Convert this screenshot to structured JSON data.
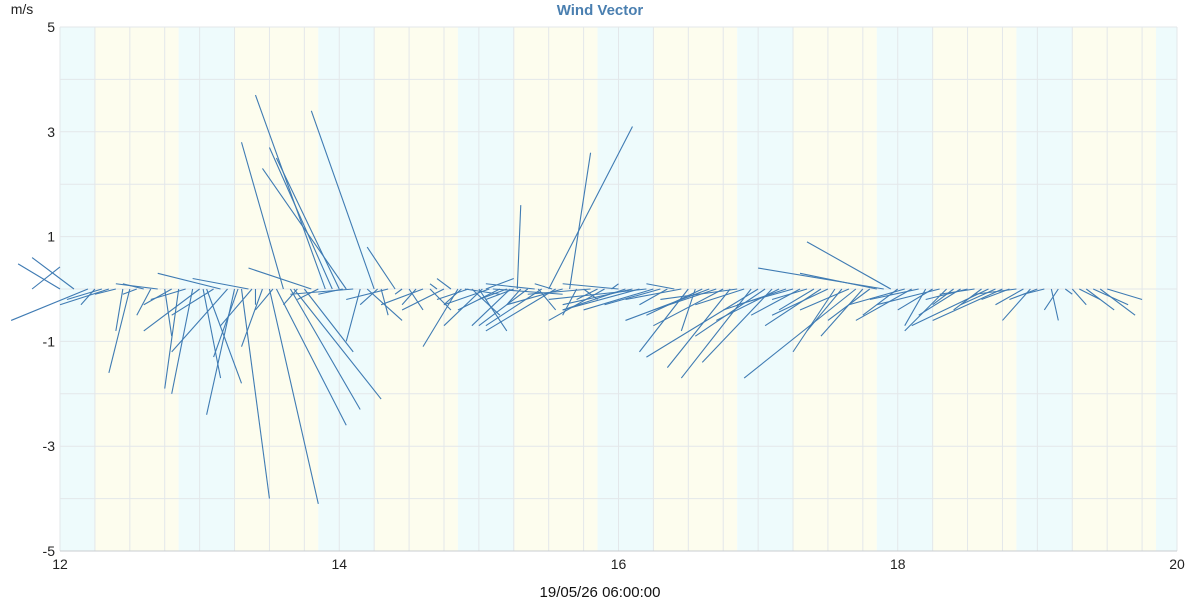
{
  "chart_data": {
    "type": "line",
    "title": "Wind Vector",
    "ylabel": "m/s",
    "xlabel": "19/05/26 06:00:00",
    "xlim": [
      12,
      20
    ],
    "ylim": [
      -5,
      5
    ],
    "x_ticks": [
      "12",
      "14",
      "16",
      "18",
      "20"
    ],
    "y_ticks": [
      "5",
      "3",
      "1",
      "-1",
      "-3",
      "-5"
    ],
    "grid": true,
    "bands": [
      {
        "from": 12.0,
        "to": 12.5,
        "kind": "cyan"
      },
      {
        "from": 12.5,
        "to": 13.7,
        "kind": "yellow"
      },
      {
        "from": 13.7,
        "to": 14.5,
        "kind": "cyan"
      },
      {
        "from": 14.5,
        "to": 15.7,
        "kind": "yellow"
      },
      {
        "from": 15.7,
        "to": 16.5,
        "kind": "cyan"
      },
      {
        "from": 16.5,
        "to": 17.7,
        "kind": "yellow"
      },
      {
        "from": 17.7,
        "to": 18.5,
        "kind": "cyan"
      },
      {
        "from": 18.5,
        "to": 19.7,
        "kind": "yellow"
      },
      {
        "from": 19.7,
        "to": 20.5,
        "kind": "cyan"
      },
      {
        "from": 20.5,
        "to": 21.7,
        "kind": "yellow"
      },
      {
        "from": 21.7,
        "to": 22.5,
        "kind": "cyan"
      },
      {
        "from": 22.5,
        "to": 23.7,
        "kind": "yellow"
      },
      {
        "from": 23.7,
        "to": 24.5,
        "kind": "cyan"
      },
      {
        "from": 24.5,
        "to": 25.7,
        "kind": "yellow"
      },
      {
        "from": 25.7,
        "to": 26.5,
        "kind": "cyan"
      },
      {
        "from": 26.5,
        "to": 27.7,
        "kind": "yellow"
      },
      {
        "from": 27.7,
        "to": 28.0,
        "kind": "cyan"
      }
    ],
    "vectors": [
      [
        11.6,
        0,
        12.0,
        0.42
      ],
      [
        12.0,
        0,
        11.4,
        0.48
      ],
      [
        12.2,
        0,
        11.6,
        0.6
      ],
      [
        12.4,
        0,
        11.3,
        -0.6
      ],
      [
        12.5,
        0,
        12.3,
        -0.3
      ],
      [
        12.6,
        0,
        12.1,
        -0.2
      ],
      [
        12.7,
        0,
        12.0,
        -0.3
      ],
      [
        12.8,
        0,
        12.5,
        -0.1
      ],
      [
        12.9,
        0,
        12.8,
        -0.8
      ],
      [
        13.0,
        0,
        12.7,
        -1.6
      ],
      [
        13.1,
        0,
        12.9,
        -0.1
      ],
      [
        13.2,
        0,
        12.9,
        0.1
      ],
      [
        13.3,
        0,
        13.1,
        -0.5
      ],
      [
        13.4,
        0,
        12.8,
        0.1
      ],
      [
        13.5,
        0,
        13.6,
        -0.9
      ],
      [
        13.6,
        0,
        13.2,
        -0.3
      ],
      [
        13.7,
        0,
        13.5,
        -1.9
      ],
      [
        13.8,
        0,
        13.3,
        -0.2
      ],
      [
        13.9,
        0,
        13.6,
        -2.0
      ],
      [
        14.0,
        0,
        13.2,
        -0.8
      ],
      [
        14.05,
        0,
        14.3,
        -1.7
      ],
      [
        14.1,
        0,
        14.6,
        -1.8
      ],
      [
        14.2,
        0,
        13.6,
        -0.5
      ],
      [
        14.3,
        0,
        13.4,
        0.3
      ],
      [
        14.4,
        0,
        13.6,
        -1.2
      ],
      [
        14.5,
        0,
        14.1,
        -2.4
      ],
      [
        14.55,
        0,
        14.2,
        -1.3
      ],
      [
        14.6,
        0,
        15.0,
        -4.0
      ],
      [
        14.7,
        0,
        13.9,
        0.2
      ],
      [
        14.75,
        0,
        14.3,
        -0.7
      ],
      [
        14.8,
        0,
        14.8,
        -0.3
      ],
      [
        14.9,
        0,
        14.6,
        -1.1
      ],
      [
        15.0,
        0,
        15.7,
        -4.1
      ],
      [
        15.05,
        0,
        14.8,
        -0.4
      ],
      [
        15.1,
        0,
        16.1,
        -2.6
      ],
      [
        15.2,
        0,
        14.6,
        2.8
      ],
      [
        15.3,
        0,
        16.3,
        -2.3
      ],
      [
        15.35,
        0,
        16.6,
        -2.1
      ],
      [
        15.4,
        0,
        15.2,
        -0.3
      ],
      [
        15.5,
        0,
        16.2,
        -1.2
      ],
      [
        15.6,
        0,
        14.7,
        0.4
      ],
      [
        15.7,
        0,
        15.4,
        -0.2
      ],
      [
        15.8,
        0,
        14.8,
        3.7
      ],
      [
        15.9,
        0,
        15.0,
        2.7
      ],
      [
        16.0,
        0,
        15.1,
        2.5
      ],
      [
        16.05,
        0,
        15.7,
        -0.1
      ],
      [
        16.1,
        0,
        14.9,
        2.3
      ],
      [
        16.2,
        0,
        15.3,
        -0.1
      ],
      [
        16.3,
        0,
        16.1,
        -1.0
      ],
      [
        16.4,
        0,
        16.9,
        -0.6
      ],
      [
        16.5,
        0,
        15.6,
        3.4
      ],
      [
        16.55,
        0,
        16.3,
        -0.3
      ],
      [
        16.6,
        0,
        16.7,
        -0.5
      ],
      [
        16.7,
        0,
        16.1,
        -0.2
      ],
      [
        16.8,
        0,
        16.4,
        0.8
      ],
      [
        16.9,
        0,
        16.8,
        -0.1
      ],
      [
        17.0,
        0,
        17.2,
        -0.4
      ],
      [
        17.1,
        0,
        16.9,
        -0.3
      ],
      [
        17.2,
        0,
        16.6,
        -0.3
      ],
      [
        17.3,
        0,
        17.6,
        -0.4
      ],
      [
        17.4,
        0,
        17.3,
        0.1
      ],
      [
        17.5,
        0,
        16.9,
        -0.4
      ],
      [
        17.6,
        0,
        17.4,
        0.2
      ],
      [
        17.7,
        0,
        17.2,
        -1.1
      ],
      [
        17.75,
        0,
        17.5,
        -0.3
      ],
      [
        17.8,
        0,
        18.3,
        -0.1
      ],
      [
        17.85,
        0,
        17.4,
        -0.2
      ],
      [
        17.9,
        0,
        18.3,
        -0.5
      ],
      [
        18.0,
        0,
        18.4,
        -0.8
      ],
      [
        18.05,
        0,
        17.5,
        -0.7
      ],
      [
        18.1,
        0,
        18.5,
        0.2
      ],
      [
        18.15,
        0,
        17.5,
        -0.3
      ],
      [
        18.2,
        0,
        19.2,
        -0.1
      ],
      [
        18.3,
        0,
        17.7,
        -0.4
      ],
      [
        18.4,
        0,
        18.0,
        -0.2
      ],
      [
        18.45,
        0,
        17.9,
        -0.7
      ],
      [
        18.5,
        0,
        18.1,
        -0.2
      ],
      [
        18.55,
        0,
        18.6,
        1.6
      ],
      [
        18.6,
        0,
        18.4,
        -0.3
      ],
      [
        18.7,
        0,
        18.0,
        -0.7
      ],
      [
        18.8,
        0,
        18.1,
        0.1
      ],
      [
        18.85,
        0,
        19.1,
        -0.4
      ],
      [
        18.9,
        0,
        18.1,
        -0.7
      ],
      [
        19.0,
        0,
        20.2,
        3.1
      ],
      [
        19.05,
        0,
        18.8,
        0.1
      ],
      [
        19.1,
        0,
        18.1,
        -0.8
      ],
      [
        19.2,
        0,
        18.4,
        -0.3
      ],
      [
        19.3,
        0,
        19.6,
        2.6
      ],
      [
        19.4,
        0,
        19.2,
        -0.5
      ],
      [
        19.5,
        0,
        19.7,
        -0.2
      ],
      [
        19.6,
        0,
        18.7,
        -0.1
      ],
      [
        19.7,
        0,
        19.4,
        -0.2
      ],
      [
        19.8,
        0,
        19.0,
        -0.6
      ],
      [
        19.9,
        0,
        20.0,
        0.1
      ],
      [
        20.0,
        0,
        19.2,
        0.1
      ],
      [
        20.1,
        0,
        19.2,
        -0.4
      ],
      [
        20.2,
        0,
        19.2,
        -0.3
      ],
      [
        20.3,
        0,
        19.2,
        -0.4
      ],
      [
        20.4,
        0,
        19.0,
        -0.2
      ],
      [
        20.5,
        0,
        19.5,
        -0.4
      ],
      [
        20.6,
        0,
        19.8,
        -0.3
      ],
      [
        20.7,
        0,
        20.3,
        -0.3
      ],
      [
        20.8,
        0,
        20.4,
        0.1
      ],
      [
        20.9,
        0,
        20.1,
        -0.2
      ],
      [
        21.0,
        0,
        20.3,
        -1.2
      ],
      [
        21.1,
        0,
        20.9,
        -0.8
      ],
      [
        21.2,
        0,
        20.4,
        -0.5
      ],
      [
        21.3,
        0,
        20.1,
        -0.6
      ],
      [
        21.4,
        0,
        20.5,
        -0.4
      ],
      [
        21.5,
        0,
        20.5,
        -0.7
      ],
      [
        21.6,
        0,
        20.7,
        -1.5
      ],
      [
        21.7,
        0,
        20.6,
        -0.2
      ],
      [
        21.8,
        0,
        21.1,
        -0.3
      ],
      [
        21.9,
        0,
        20.9,
        -1.7
      ],
      [
        22.0,
        0,
        20.4,
        -1.3
      ],
      [
        22.1,
        0,
        21.1,
        -0.9
      ],
      [
        22.2,
        0,
        21.2,
        -1.4
      ],
      [
        22.3,
        0,
        21.4,
        -0.6
      ],
      [
        22.4,
        0,
        21.5,
        -0.4
      ],
      [
        22.5,
        0,
        21.7,
        -0.3
      ],
      [
        22.6,
        0,
        21.9,
        -0.5
      ],
      [
        22.7,
        0,
        22.2,
        -0.2
      ],
      [
        22.8,
        0,
        22.3,
        -0.4
      ],
      [
        22.9,
        0,
        22.1,
        -0.7
      ],
      [
        23.0,
        0,
        22.2,
        -0.5
      ],
      [
        23.1,
        0,
        22.5,
        -1.2
      ],
      [
        23.2,
        0,
        22.7,
        -0.8
      ],
      [
        23.3,
        0,
        22.6,
        -0.4
      ],
      [
        23.4,
        0,
        21.8,
        -1.7
      ],
      [
        23.5,
        0,
        22.9,
        -0.9
      ],
      [
        23.6,
        0,
        23.0,
        -0.6
      ],
      [
        23.7,
        0,
        22.6,
        0.3
      ],
      [
        23.8,
        0,
        22.0,
        0.4
      ],
      [
        23.9,
        0,
        22.7,
        0.9
      ],
      [
        24.0,
        0,
        23.5,
        -0.5
      ],
      [
        24.1,
        0,
        23.3,
        -0.3
      ],
      [
        24.2,
        0,
        23.4,
        -0.6
      ],
      [
        24.3,
        0,
        23.6,
        -0.2
      ],
      [
        24.4,
        0,
        24.1,
        -0.7
      ],
      [
        24.5,
        0,
        24.0,
        -0.4
      ],
      [
        24.6,
        0,
        23.7,
        -0.3
      ],
      [
        24.7,
        0,
        24.1,
        -0.8
      ],
      [
        24.8,
        0,
        24.5,
        -0.3
      ],
      [
        24.9,
        0,
        24.3,
        -0.5
      ],
      [
        25.0,
        0,
        24.4,
        -0.2
      ],
      [
        25.1,
        0,
        24.6,
        -0.1
      ],
      [
        25.2,
        0,
        24.8,
        -0.4
      ],
      [
        25.3,
        0,
        24.2,
        -0.7
      ],
      [
        25.4,
        0,
        24.9,
        -0.3
      ],
      [
        25.5,
        0,
        24.5,
        -0.6
      ],
      [
        25.6,
        0,
        25.2,
        -0.2
      ],
      [
        25.7,
        0,
        25.1,
        -0.1
      ],
      [
        25.8,
        0,
        25.4,
        -0.3
      ],
      [
        25.9,
        0,
        25.5,
        -0.6
      ],
      [
        26.0,
        0,
        25.6,
        -0.2
      ],
      [
        26.1,
        0,
        25.8,
        -0.1
      ],
      [
        26.2,
        0,
        26.3,
        -0.6
      ],
      [
        26.3,
        0,
        26.1,
        -0.4
      ],
      [
        26.4,
        0,
        26.5,
        -0.1
      ],
      [
        26.5,
        0,
        26.7,
        -0.3
      ],
      [
        26.6,
        0,
        26.9,
        -0.2
      ],
      [
        26.7,
        0,
        27.1,
        -0.4
      ],
      [
        26.8,
        0,
        27.3,
        -0.3
      ],
      [
        26.9,
        0,
        27.4,
        -0.5
      ],
      [
        27.0,
        0,
        27.5,
        -0.2
      ]
    ]
  }
}
